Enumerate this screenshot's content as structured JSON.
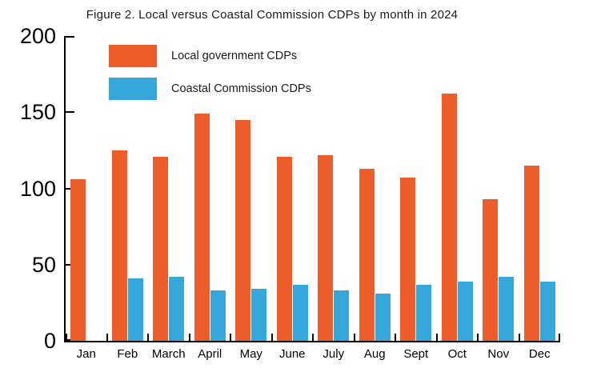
{
  "figure": {
    "title": "Figure 2. Local versus Coastal Commission CDPs by month in 2024"
  },
  "chart_data": {
    "type": "bar",
    "title": "Figure 2. Local versus Coastal Commission CDPs by month in 2024",
    "categories": [
      "Jan",
      "Feb",
      "March",
      "April",
      "May",
      "June",
      "July",
      "Aug",
      "Sept",
      "Oct",
      "Nov",
      "Dec"
    ],
    "series": [
      {
        "name": "Local government CDPs",
        "color": "#ec5d2a",
        "values": [
          106,
          125,
          121,
          149,
          145,
          121,
          122,
          113,
          107,
          162,
          93,
          115
        ]
      },
      {
        "name": "Coastal Commission CDPs",
        "color": "#36a7db",
        "values": [
          0,
          41,
          42,
          33,
          34,
          37,
          33,
          31,
          37,
          39,
          42,
          39
        ]
      }
    ],
    "xlabel": "",
    "ylabel": "",
    "ylim": [
      0,
      200
    ],
    "yticks": [
      0,
      50,
      100,
      150,
      200
    ],
    "grid": false,
    "legend_position": "top-left-inside",
    "axis_color": "#000000",
    "background_color": "#ffffff"
  }
}
